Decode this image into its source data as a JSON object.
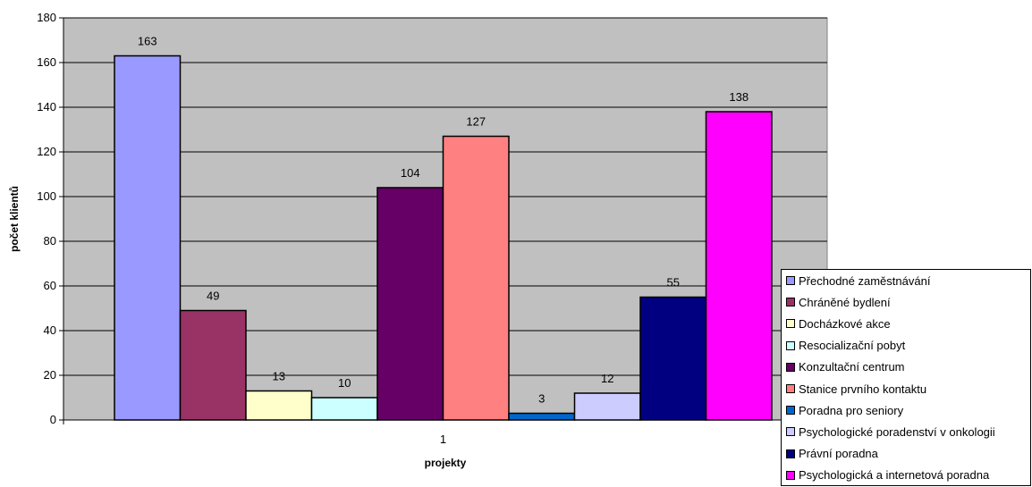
{
  "chart_data": {
    "type": "bar",
    "categories": [
      "1"
    ],
    "series": [
      {
        "name": "Přechodné zaměstnávání",
        "values": [
          163
        ],
        "color": "#9999ff"
      },
      {
        "name": "Chráněné bydlení",
        "values": [
          49
        ],
        "color": "#993366"
      },
      {
        "name": "Docházkové akce",
        "values": [
          13
        ],
        "color": "#ffffcc"
      },
      {
        "name": "Resocializační pobyt",
        "values": [
          10
        ],
        "color": "#ccffff"
      },
      {
        "name": "Konzultační centrum",
        "values": [
          104
        ],
        "color": "#660066"
      },
      {
        "name": "Stanice prvního kontaktu",
        "values": [
          127
        ],
        "color": "#ff8080"
      },
      {
        "name": "Poradna pro seniory",
        "values": [
          3
        ],
        "color": "#0066cc"
      },
      {
        "name": "Psychologické poradenství v onkologii",
        "values": [
          12
        ],
        "color": "#ccccff"
      },
      {
        "name": "Právní poradna",
        "values": [
          55
        ],
        "color": "#000080"
      },
      {
        "name": "Psychologická a internetová poradna",
        "values": [
          138
        ],
        "color": "#ff00ff"
      }
    ],
    "title": "",
    "xlabel": "projekty",
    "ylabel": "počet klientů",
    "ylim": [
      0,
      180
    ],
    "yticks": [
      0,
      20,
      40,
      60,
      80,
      100,
      120,
      140,
      160,
      180
    ],
    "grid": true,
    "plot_background": "#c0c0c0",
    "legend_position": "right"
  }
}
